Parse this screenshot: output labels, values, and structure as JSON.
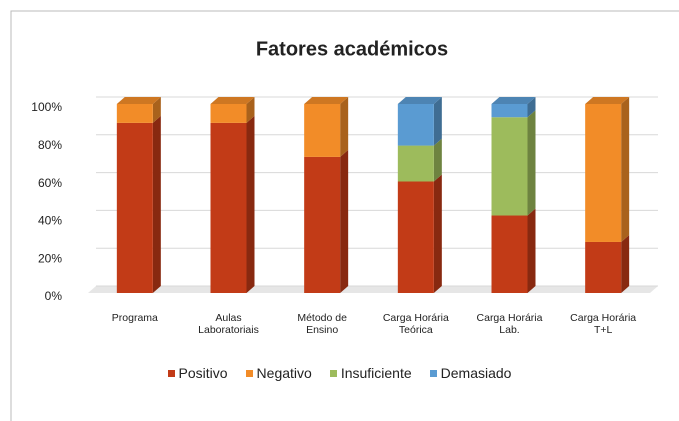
{
  "chart_data": {
    "type": "stacked_bar_3d",
    "title": "Fatores académicos",
    "categories": [
      "Programa",
      "Aulas\nLaboratoriais",
      "Método de\nEnsino",
      "Carga Horária\nTeórica",
      "Carga Horária\nLab.",
      "Carga Horária\nT+L"
    ],
    "series": [
      {
        "name": "Positivo",
        "color": "#c23b17",
        "values": [
          90,
          90,
          72,
          59,
          41,
          27
        ]
      },
      {
        "name": "Negativo",
        "color": "#f28c28",
        "values": [
          10,
          10,
          28,
          0,
          0,
          73
        ]
      },
      {
        "name": "Insuficiente",
        "color": "#9dbb5c",
        "values": [
          0,
          0,
          0,
          19,
          52,
          0
        ]
      },
      {
        "name": "Demasiado",
        "color": "#5a9bd2",
        "values": [
          0,
          0,
          0,
          22,
          7,
          0
        ]
      }
    ],
    "ylim": [
      0,
      100
    ],
    "yticks": [
      {
        "value": 0,
        "label": "0%"
      },
      {
        "value": 20,
        "label": "20%"
      },
      {
        "value": 40,
        "label": "40%"
      },
      {
        "value": 60,
        "label": "60%"
      },
      {
        "value": 80,
        "label": "80%"
      },
      {
        "value": 100,
        "label": "100%"
      }
    ],
    "grid": true,
    "legend": "bottom"
  }
}
